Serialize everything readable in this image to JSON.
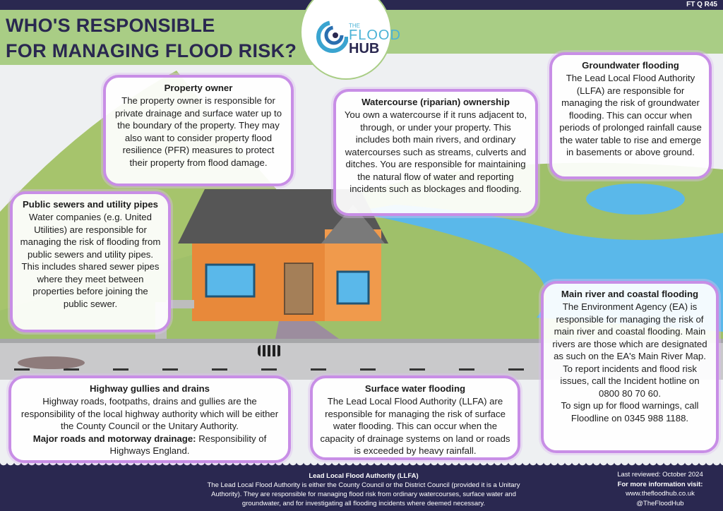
{
  "doc_code": "FT Q R45",
  "title_lines": [
    "WHO'S RESPONSIBLE",
    "FOR MANAGING FLOOD RISK?"
  ],
  "logo": {
    "the": "THE",
    "flood": "FLOOD",
    "hub": "HUB"
  },
  "colors": {
    "navy": "#2a2850",
    "green": "#a9cd85",
    "box_border": "#c88ee6",
    "water": "#5ab8ea"
  },
  "boxes": {
    "property": {
      "title": "Property owner",
      "body": "The property owner is responsible for private drainage and surface water up to the boundary of the property. They may also want to consider property flood resilience (PFR) measures to protect their property from flood damage."
    },
    "watercourse": {
      "title": "Watercourse (riparian) ownership",
      "body": "You own a watercourse if it runs adjacent to, through, or under your property. This includes both main rivers, and ordinary watercourses such as streams, culverts and ditches. You are responsible for maintaining the natural flow of water and reporting incidents such as blockages and flooding."
    },
    "groundwater": {
      "title": "Groundwater flooding",
      "body": "The Lead Local Flood Authority (LLFA) are responsible for managing the risk of groundwater flooding. This can occur when periods of prolonged rainfall cause the water table to rise and emerge in basements or above ground."
    },
    "sewers": {
      "title": "Public sewers and utility pipes",
      "body": "Water companies (e.g. United Utilities) are responsible for managing the risk of flooding from public sewers and utility pipes. This includes shared sewer pipes where they meet between properties before joining the public sewer."
    },
    "main_river": {
      "title": "Main river and coastal flooding",
      "body": "The Environment Agency (EA) is responsible for managing the risk of main river and coastal flooding. Main rivers are those which are designated as such on the EA's Main River Map.",
      "body2": "To report incidents and flood risk issues, call the Incident hotline on 0800 80 70 60.",
      "body3": "To sign up for flood warnings, call Floodline on 0345 988 1188."
    },
    "highway": {
      "title": "Highway gullies and drains",
      "body": "Highway roads, footpaths, drains and gullies are the responsibility of the local highway authority which will be either the County Council or the Unitary Authority.",
      "bold": "Major roads and motorway drainage:",
      "body2": "  Responsibility of Highways England."
    },
    "surface": {
      "title": "Surface water flooding",
      "body": "The Lead Local Flood Authority (LLFA) are responsible for managing the risk of surface water flooding. This can occur when the capacity of drainage systems on land or roads is exceeded by heavy rainfall."
    }
  },
  "footer": {
    "llfa_title": "Lead Local Flood Authority (LLFA)",
    "llfa_body": "The Lead Local Flood Authority is either the County Council or the District Council (provided it is a Unitary Authority). They are responsible for managing flood risk from ordinary watercourses, surface water and groundwater, and for investigating all flooding incidents where deemed necessary.",
    "reviewed": "Last reviewed: October 2024",
    "more_info": "For more information visit:",
    "website": "www.thefloodhub.co.uk",
    "handle": "@TheFloodHub"
  }
}
